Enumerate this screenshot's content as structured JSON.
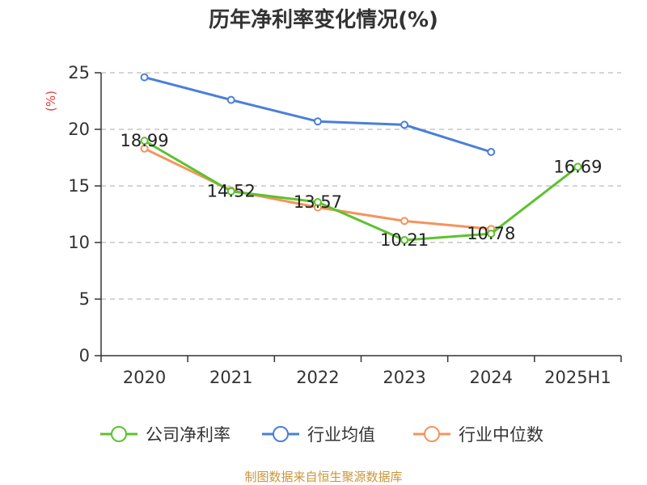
{
  "chart_data": {
    "type": "line",
    "title": "历年净利率变化情况(%)",
    "ylabel": "(%)",
    "categories": [
      "2020",
      "2021",
      "2022",
      "2023",
      "2024",
      "2025H1"
    ],
    "ylim": [
      0,
      25
    ],
    "yticks": [
      "0",
      "5",
      "10",
      "15",
      "20",
      "25"
    ],
    "grid": true,
    "legend_position": "bottom",
    "series": [
      {
        "name": "公司净利率",
        "color": "#5cc22e",
        "values": [
          18.99,
          14.52,
          13.57,
          10.21,
          10.78,
          16.69
        ],
        "labels": [
          "18.99",
          "14.52",
          "13.57",
          "10.21",
          "10.78",
          "16.69"
        ]
      },
      {
        "name": "行业均值",
        "color": "#4a7fd8",
        "values": [
          24.6,
          22.6,
          20.7,
          20.4,
          18.0,
          null
        ],
        "labels": []
      },
      {
        "name": "行业中位数",
        "color": "#f5935c",
        "values": [
          18.3,
          14.6,
          13.1,
          11.9,
          11.2,
          null
        ],
        "labels": []
      }
    ]
  },
  "source_text": "制图数据来自恒生聚源数据库",
  "colors": {
    "ylabel": "#e33b3b",
    "source": "#c9963a",
    "axis": "#333333",
    "grid": "#bbbbbb"
  }
}
